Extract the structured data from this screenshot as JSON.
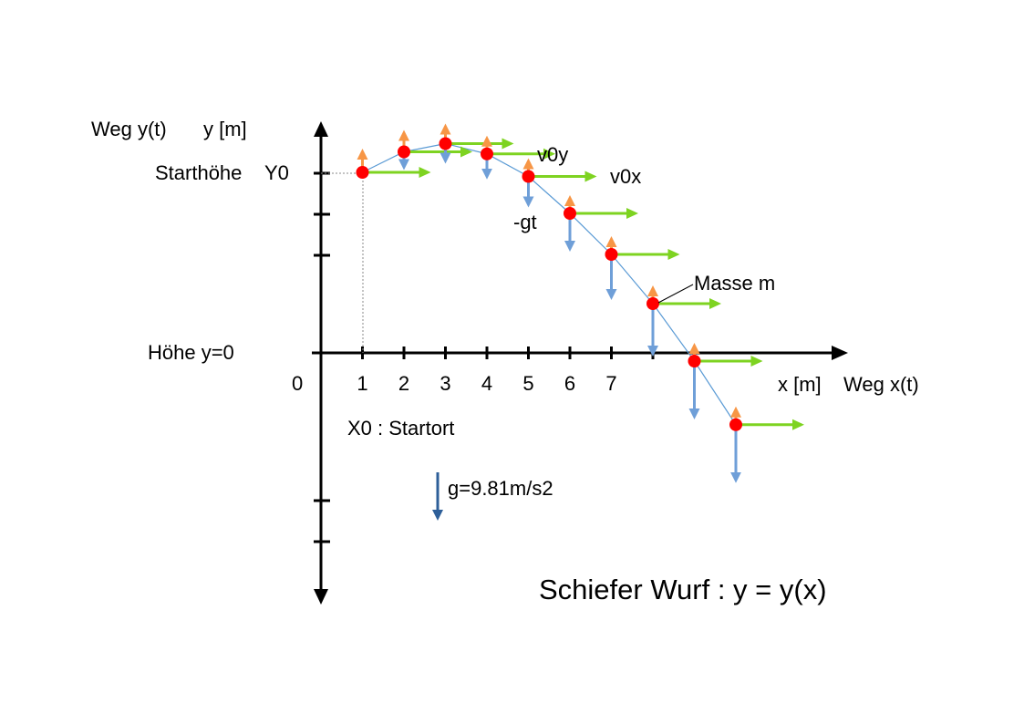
{
  "labels": {
    "y_axis_title": "Weg y(t)",
    "y_axis_unit": "y [m]",
    "start_height": "Starthöhe",
    "y0": "Y0",
    "height_zero": "Höhe  y=0",
    "origin": "0",
    "x_axis_unit": "x [m]",
    "x_axis_title": "Weg x(t)",
    "start_place": "X0 : Startort",
    "gravity": "g=9.81m/s2",
    "v0y": "v0y",
    "v0x": "v0x",
    "gt": "-gt",
    "mass": "Masse m",
    "title": "Schiefer Wurf : y = y(x)"
  },
  "x_ticks": [
    "1",
    "2",
    "3",
    "4",
    "5",
    "6",
    "7"
  ],
  "colors": {
    "axis": "#000000",
    "point": "#ff0000",
    "curve": "#5b9bd5",
    "vx_arrow": "#7ed321",
    "vy_up_arrow": "#f79646",
    "vy_down_arrow": "#6f9fd8",
    "gravity_arrow": "#2e5f99"
  },
  "trajectory": [
    {
      "x": 1,
      "y": 4.4
    },
    {
      "x": 2,
      "y": 4.9
    },
    {
      "x": 3,
      "y": 5.1
    },
    {
      "x": 4,
      "y": 4.85
    },
    {
      "x": 5,
      "y": 4.3
    },
    {
      "x": 6,
      "y": 3.4
    },
    {
      "x": 7,
      "y": 2.4
    },
    {
      "x": 8,
      "y": 1.2
    },
    {
      "x": 9,
      "y": -0.2
    },
    {
      "x": 10,
      "y": -1.75
    }
  ]
}
